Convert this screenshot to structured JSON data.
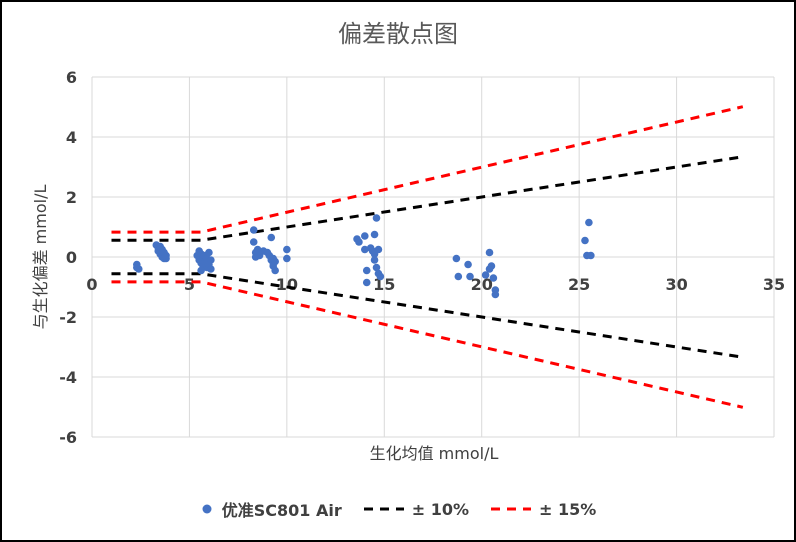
{
  "chart_data": {
    "type": "scatter",
    "title": "偏差散点图",
    "xlabel": "生化均值 mmol/L",
    "ylabel": "与生化偏差 mmol/L",
    "xlim": [
      0,
      35
    ],
    "ylim": [
      -6,
      6
    ],
    "x_ticks": [
      "0",
      "5",
      "10",
      "15",
      "20",
      "25",
      "30",
      "35"
    ],
    "y_ticks": [
      "6",
      "4",
      "2",
      "0",
      "-2",
      "-4",
      "-6"
    ],
    "grid": true,
    "legend_position": "bottom",
    "series": [
      {
        "name": "优准SC801 Air",
        "kind": "scatter",
        "color": "#4472C4",
        "points": [
          [
            2.3,
            -0.25
          ],
          [
            2.3,
            -0.35
          ],
          [
            2.4,
            -0.4
          ],
          [
            3.3,
            0.4
          ],
          [
            3.4,
            0.3
          ],
          [
            3.4,
            0.2
          ],
          [
            3.5,
            0.35
          ],
          [
            3.5,
            0.1
          ],
          [
            3.6,
            0.25
          ],
          [
            3.6,
            0.0
          ],
          [
            3.7,
            -0.05
          ],
          [
            3.7,
            0.15
          ],
          [
            3.8,
            -0.05
          ],
          [
            3.8,
            0.05
          ],
          [
            5.4,
            0.05
          ],
          [
            5.5,
            -0.1
          ],
          [
            5.5,
            0.2
          ],
          [
            5.6,
            -0.2
          ],
          [
            5.6,
            0.1
          ],
          [
            5.7,
            -0.3
          ],
          [
            5.7,
            0.0
          ],
          [
            5.8,
            -0.15
          ],
          [
            5.8,
            0.05
          ],
          [
            5.9,
            -0.35
          ],
          [
            5.9,
            -0.05
          ],
          [
            6.0,
            -0.25
          ],
          [
            6.0,
            0.15
          ],
          [
            6.1,
            -0.4
          ],
          [
            6.1,
            -0.1
          ],
          [
            5.6,
            -0.45
          ],
          [
            8.3,
            0.9
          ],
          [
            8.3,
            0.5
          ],
          [
            8.4,
            0.15
          ],
          [
            8.4,
            0.0
          ],
          [
            8.5,
            0.25
          ],
          [
            8.6,
            0.05
          ],
          [
            8.8,
            0.2
          ],
          [
            9.0,
            0.15
          ],
          [
            9.1,
            0.05
          ],
          [
            9.2,
            0.65
          ],
          [
            9.2,
            -0.1
          ],
          [
            9.3,
            -0.2
          ],
          [
            9.3,
            -0.3
          ],
          [
            9.4,
            -0.15
          ],
          [
            9.4,
            -0.45
          ],
          [
            9.3,
            -0.05
          ],
          [
            10.0,
            0.25
          ],
          [
            10.0,
            -0.05
          ],
          [
            13.6,
            0.6
          ],
          [
            13.7,
            0.5
          ],
          [
            14.0,
            0.7
          ],
          [
            14.0,
            0.25
          ],
          [
            14.1,
            -0.45
          ],
          [
            14.1,
            -0.85
          ],
          [
            14.3,
            0.3
          ],
          [
            14.4,
            0.2
          ],
          [
            14.5,
            0.75
          ],
          [
            14.5,
            0.1
          ],
          [
            14.5,
            -0.1
          ],
          [
            14.6,
            1.3
          ],
          [
            14.6,
            -0.35
          ],
          [
            14.7,
            0.25
          ],
          [
            14.7,
            -0.55
          ],
          [
            14.8,
            -0.65
          ],
          [
            18.7,
            -0.05
          ],
          [
            18.8,
            -0.65
          ],
          [
            19.3,
            -0.25
          ],
          [
            19.4,
            -0.65
          ],
          [
            20.2,
            -0.6
          ],
          [
            20.4,
            0.15
          ],
          [
            20.4,
            -0.4
          ],
          [
            20.5,
            -0.3
          ],
          [
            20.6,
            -0.7
          ],
          [
            20.7,
            -1.1
          ],
          [
            20.7,
            -1.25
          ],
          [
            25.3,
            0.55
          ],
          [
            25.4,
            0.05
          ],
          [
            25.5,
            1.15
          ],
          [
            25.6,
            0.05
          ]
        ]
      },
      {
        "name": "± 10%",
        "kind": "line",
        "color": "#000000",
        "dash": "9,7",
        "upper": [
          [
            1.0,
            0.56
          ],
          [
            5.6,
            0.56
          ],
          [
            33.4,
            3.34
          ]
        ],
        "lower": [
          [
            1.0,
            -0.56
          ],
          [
            5.6,
            -0.56
          ],
          [
            33.4,
            -3.34
          ]
        ]
      },
      {
        "name": "± 15%",
        "kind": "line",
        "color": "#FF0000",
        "dash": "9,7",
        "upper": [
          [
            1.0,
            0.83
          ],
          [
            5.6,
            0.83
          ],
          [
            33.4,
            5.01
          ]
        ],
        "lower": [
          [
            1.0,
            -0.83
          ],
          [
            5.6,
            -0.83
          ],
          [
            33.4,
            -5.01
          ]
        ]
      }
    ]
  }
}
